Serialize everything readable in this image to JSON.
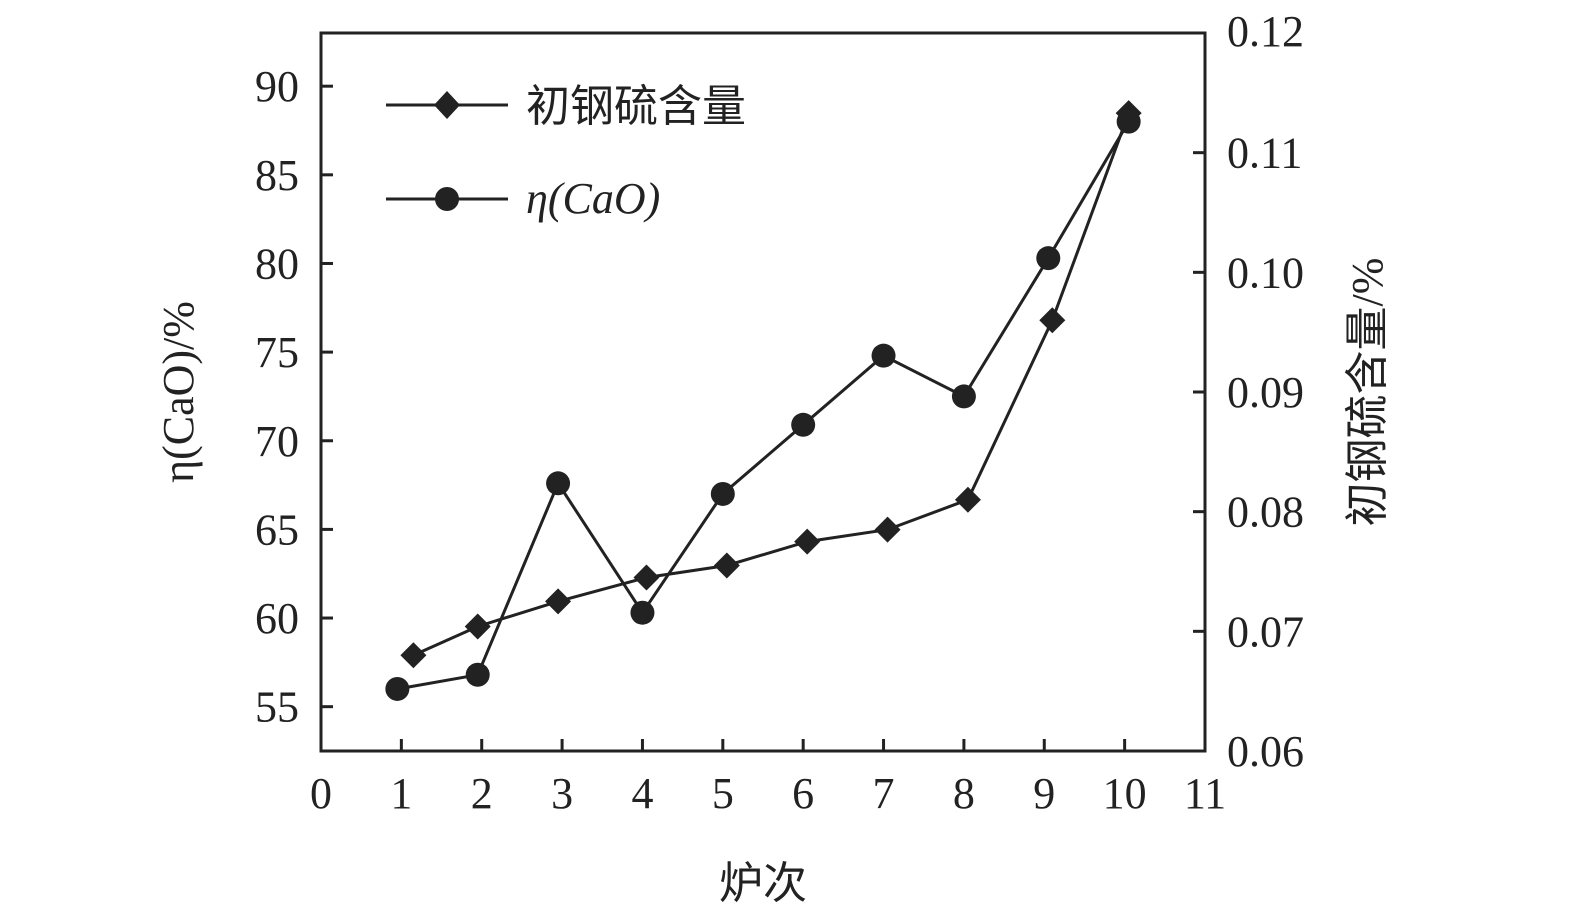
{
  "chart_data": {
    "type": "line",
    "title": "",
    "xlabel": "炉次",
    "ylabel_left": "η(CaO)/%",
    "ylabel_right": "初钢硫含量/%",
    "xlim": [
      0,
      11
    ],
    "ylim_left": [
      52.5,
      93
    ],
    "ylim_right": [
      0.06,
      0.12
    ],
    "x_ticks": [
      "0",
      "1",
      "2",
      "3",
      "4",
      "5",
      "6",
      "7",
      "8",
      "9",
      "10",
      "11"
    ],
    "y_left_ticks": [
      "55",
      "60",
      "65",
      "70",
      "75",
      "80",
      "85",
      "90"
    ],
    "y_right_ticks": [
      "0.06",
      "0.07",
      "0.08",
      "0.09",
      "0.10",
      "0.11",
      "0.12"
    ],
    "grid": false,
    "legend_position": "top-left",
    "series": [
      {
        "name": "初钢硫含量",
        "axis": "right",
        "marker": "diamond",
        "x": [
          1.15,
          1.95,
          2.95,
          4.05,
          5.05,
          6.05,
          7.05,
          8.05,
          9.1,
          10.05
        ],
        "values": [
          0.068,
          0.0704,
          0.0725,
          0.0745,
          0.0755,
          0.0775,
          0.0785,
          0.081,
          0.096,
          0.1133
        ]
      },
      {
        "name": "η(CaO)",
        "axis": "left",
        "marker": "circle",
        "x": [
          0.95,
          1.95,
          2.95,
          4.0,
          5.0,
          6.0,
          7.0,
          8.0,
          9.05,
          10.05
        ],
        "values": [
          56.0,
          56.8,
          67.6,
          60.3,
          67.0,
          70.9,
          74.8,
          72.5,
          80.3,
          88.0
        ]
      }
    ]
  }
}
